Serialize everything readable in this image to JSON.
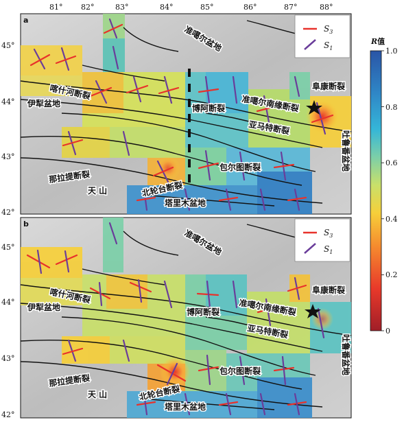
{
  "x_ticks": [
    "81°",
    "82°",
    "83°",
    "84°",
    "85°",
    "86°",
    "87°",
    "88°"
  ],
  "y_ticks": [
    "45°",
    "44°",
    "43°",
    "42°"
  ],
  "legend": {
    "s3_label": "S",
    "s3_sub": "3",
    "s1_label": "S",
    "s1_sub": "1",
    "s3_color": "#e8322b",
    "s1_color": "#6a3d9a"
  },
  "colorbar": {
    "title_italic": "R",
    "title_rest": "值",
    "ticks": [
      "1.0",
      "0.8",
      "0.6",
      "0.4",
      "0.2",
      "0"
    ]
  },
  "panels": [
    {
      "letter": "a",
      "labels": [
        "准噶尔盆地",
        "阜康断裂",
        "喀什河断裂",
        "伊犁盆地",
        "博阿断裂",
        "准噶尔南缘断裂",
        "亚马特断裂",
        "包尔图断裂",
        "那拉提断裂",
        "天  山",
        "北轮台断裂",
        "塔里木盆地",
        "吐鲁番盆地"
      ]
    },
    {
      "letter": "b",
      "labels": [
        "准噶尔盆地",
        "阜康断裂",
        "喀什河断裂",
        "伊犁盆地",
        "博阿断裂",
        "准噶尔南缘断裂",
        "亚马特断裂",
        "包尔图断裂",
        "那拉提断裂",
        "天  山",
        "北轮台断裂",
        "塔里木盆地",
        "吐鲁番盆地"
      ]
    }
  ]
}
